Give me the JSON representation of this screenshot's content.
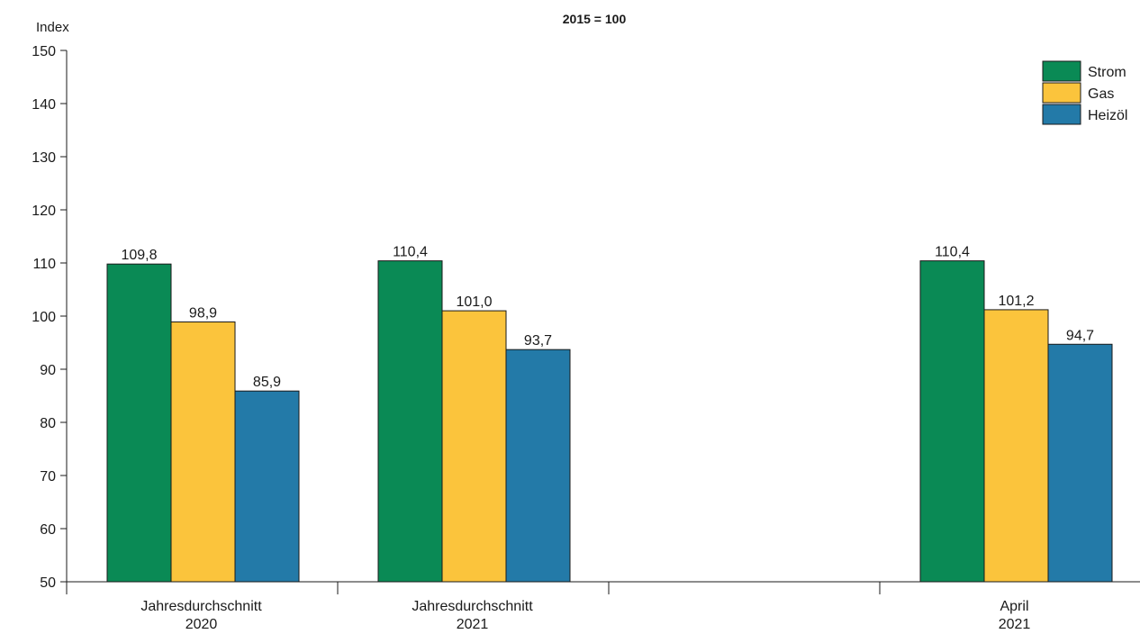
{
  "chart_data": {
    "type": "bar",
    "title": "2015 = 100",
    "ylabel": "Index",
    "xlabel": "",
    "ylim": [
      50,
      150
    ],
    "yticks": [
      50,
      60,
      70,
      80,
      90,
      100,
      110,
      120,
      130,
      140,
      150
    ],
    "categories": [
      {
        "line1": "Jahresdurchschnitt",
        "line2": "2020"
      },
      {
        "line1": "Jahresdurchschnitt",
        "line2": "2021"
      },
      {
        "line1": "",
        "line2": ""
      },
      {
        "line1": "April",
        "line2": "2021"
      }
    ],
    "series": [
      {
        "name": "Strom",
        "color": "#0a8a55",
        "values": [
          109.8,
          110.4,
          null,
          110.4
        ],
        "labels": [
          "109,8",
          "110,4",
          "",
          "110,4"
        ]
      },
      {
        "name": "Gas",
        "color": "#fbc43c",
        "values": [
          98.9,
          101.0,
          null,
          101.2
        ],
        "labels": [
          "98,9",
          "101,0",
          "",
          "101,2"
        ]
      },
      {
        "name": "Heizöl",
        "color": "#237aa8",
        "values": [
          85.9,
          93.7,
          null,
          94.7
        ],
        "labels": [
          "85,9",
          "93,7",
          "",
          "94,7"
        ]
      }
    ],
    "legend_position": "top-right",
    "grid": false
  }
}
